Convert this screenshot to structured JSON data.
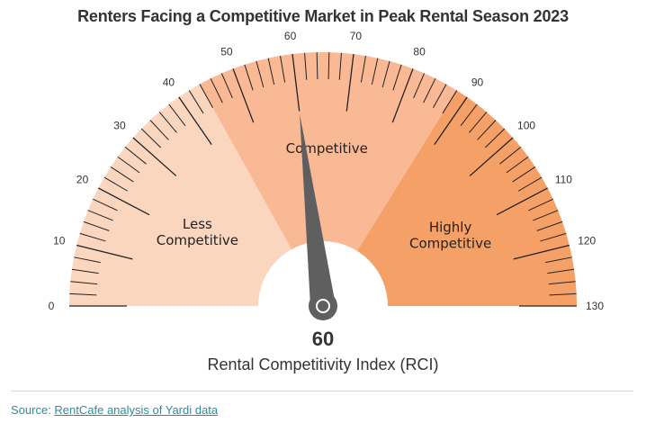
{
  "title": "Renters Facing a Competitive Market in Peak Rental Season 2023",
  "gauge_value_text": "60",
  "subtitle": "Rental Competitivity Index (RCI)",
  "source": {
    "prefix": "Source: ",
    "link_text": "RentCafe analysis of Yardi data"
  },
  "chart_data": {
    "type": "gauge",
    "title": "Renters Facing a Competitive Market in Peak Rental Season 2023",
    "xlabel": "Rental Competitivity Index (RCI)",
    "range": [
      0,
      130
    ],
    "value": 60,
    "tick_labels": [
      "0",
      "10",
      "20",
      "30",
      "40",
      "50",
      "60",
      "70",
      "80",
      "90",
      "100",
      "110",
      "120",
      "130"
    ],
    "bands": [
      {
        "label_lines": [
          "Less",
          "Competitive"
        ],
        "from": 0,
        "to": 44,
        "color": "#fbd6bf"
      },
      {
        "label_lines": [
          "Competitive"
        ],
        "from": 44,
        "to": 88,
        "color": "#f8b994"
      },
      {
        "label_lines": [
          "Highly",
          "Competitive"
        ],
        "from": 88,
        "to": 130,
        "color": "#f5a066"
      }
    ]
  },
  "colors": {
    "tick": "#222222",
    "needle": "#5f5f5f",
    "hub_fill": "#ffffff",
    "link": "#2f8c9a"
  }
}
